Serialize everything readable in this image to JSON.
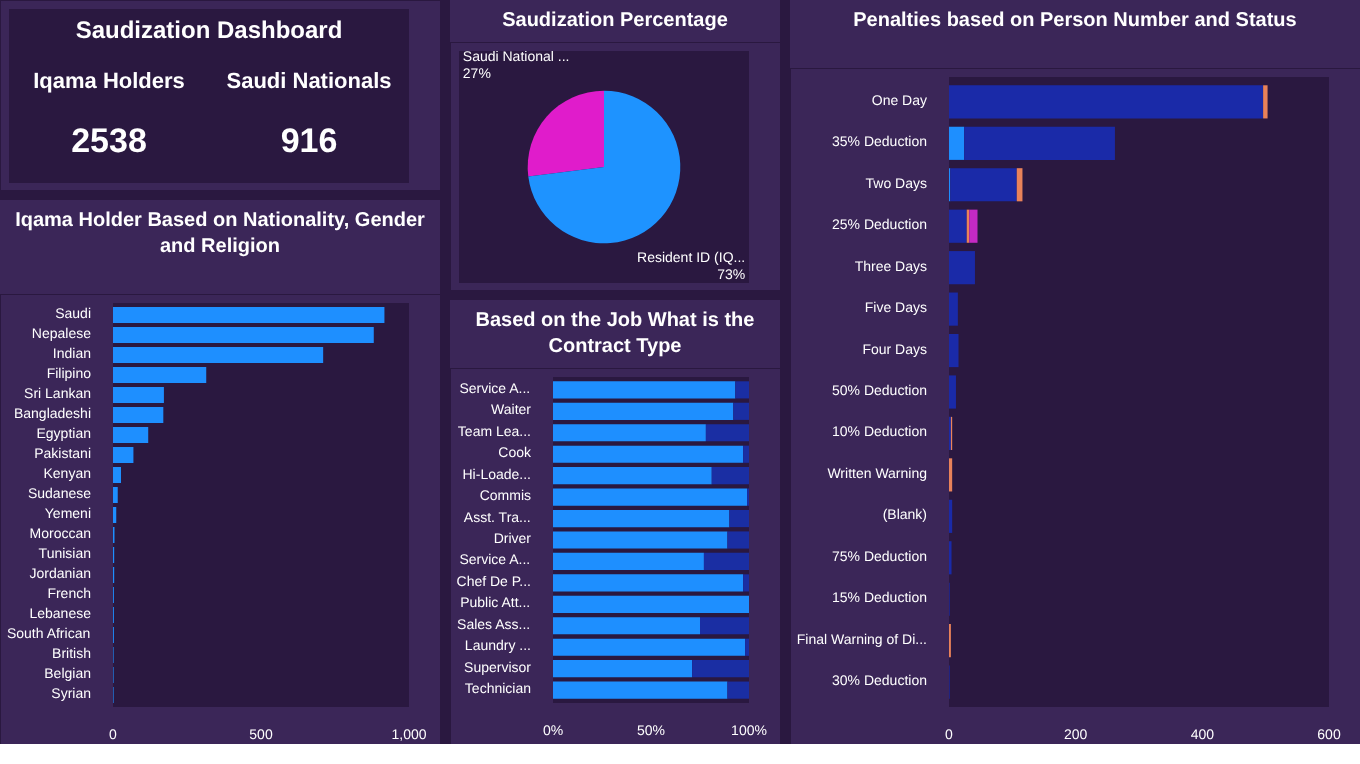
{
  "chart_data": [
    {
      "type": "other",
      "title": "Saudization Dashboard",
      "annotations": [
        "Iqama Holders",
        "2538",
        "Saudi Nationals",
        "916"
      ]
    },
    {
      "type": "bar",
      "orientation": "horizontal",
      "title": "Iqama Holder Based on Nationality, Gender and Religion",
      "categories": [
        "Saudi",
        "Nepalese",
        "Indian",
        "Filipino",
        "Sri Lankan",
        "Bangladeshi",
        "Egyptian",
        "Pakistani",
        "Kenyan",
        "Sudanese",
        "Yemeni",
        "Moroccan",
        "Tunisian",
        "Jordanian",
        "French",
        "Lebanese",
        "South African",
        "British",
        "Belgian",
        "Syrian"
      ],
      "series": [
        {
          "color": "#1e8fff",
          "values": [
            917,
            881,
            710,
            315,
            172,
            170,
            119,
            69,
            27,
            16,
            11,
            5,
            4,
            4,
            3,
            3,
            3,
            2,
            2,
            2
          ]
        }
      ],
      "xlim": [
        0,
        1000
      ],
      "xticks": [
        0,
        500,
        {
          "value": 1000,
          "label": "1,000"
        }
      ]
    },
    {
      "type": "pie",
      "title": "Saudization Percentage",
      "categories": [
        "Saudi National ...",
        "Resident ID (IQ..."
      ],
      "values": [
        27,
        73
      ],
      "colors": [
        "#e01ccb",
        "#1e93ff"
      ],
      "value_labels": [
        "27%",
        "73%"
      ]
    },
    {
      "type": "bar",
      "orientation": "horizontal",
      "stacked": true,
      "title": "Based on the Job What is the Contract Type",
      "categories": [
        "Service A...",
        "Waiter",
        "Team Lea...",
        "Cook",
        "Hi-Loade...",
        "Commis",
        "Asst. Tra...",
        "Driver",
        "Service A...",
        "Chef De P...",
        "Public Att...",
        "Sales Ass...",
        "Laundry ...",
        "Supervisor",
        "Technician"
      ],
      "series": [
        {
          "color": "#1e8fff",
          "values": [
            93,
            92,
            78,
            97,
            81,
            99,
            90,
            89,
            77,
            97,
            100,
            75,
            98,
            71,
            89
          ]
        },
        {
          "color": "#1a2ea3",
          "values": [
            7,
            8,
            22,
            3,
            19,
            1,
            10,
            11,
            23,
            3,
            null,
            25,
            2,
            29,
            11
          ]
        }
      ],
      "xlim": [
        0,
        100
      ],
      "xticks": [
        {
          "value": 0,
          "label": "0%"
        },
        {
          "value": 50,
          "label": "50%"
        },
        {
          "value": 100,
          "label": "100%"
        }
      ]
    },
    {
      "type": "bar",
      "orientation": "horizontal",
      "stacked": true,
      "title": "Penalties based on Person Number and Status",
      "categories": [
        "One Day",
        "35% Deduction",
        "Two Days",
        "25% Deduction",
        "Three Days",
        "Five Days",
        "Four Days",
        "50% Deduction",
        "10% Deduction",
        "Written Warning",
        "(Blank)",
        "75% Deduction",
        "15% Deduction",
        "Final Warning of Di...",
        "30% Deduction"
      ],
      "series": [
        {
          "color": "#1e8fff",
          "values": [
            null,
            24,
            2,
            null,
            null,
            null,
            null,
            null,
            null,
            null,
            null,
            null,
            null,
            null,
            null
          ]
        },
        {
          "color": "#1a2aa8",
          "values": [
            496,
            238,
            105,
            28,
            41,
            14,
            15,
            11,
            3,
            null,
            5,
            4,
            1,
            null,
            1
          ]
        },
        {
          "color": "#e8825a",
          "values": [
            7,
            null,
            9,
            4,
            null,
            null,
            null,
            null,
            2,
            5,
            null,
            null,
            null,
            3,
            null
          ]
        },
        {
          "color": "#c42ac4",
          "values": [
            null,
            null,
            null,
            13,
            null,
            null,
            null,
            null,
            null,
            null,
            null,
            null,
            null,
            null,
            null
          ]
        }
      ],
      "xlim": [
        0,
        600
      ],
      "xticks": [
        0,
        200,
        400,
        600
      ]
    }
  ]
}
